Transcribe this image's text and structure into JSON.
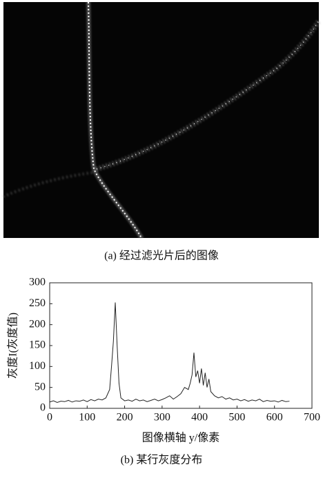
{
  "figure_a": {
    "caption": "(a) 经过滤光片后的图像"
  },
  "chart_data": {
    "type": "line",
    "xlabel": "图像横轴 y/像素",
    "ylabel": "灰度I(灰度值)",
    "caption": "(b) 某行灰度分布",
    "x": [
      0,
      10,
      20,
      30,
      40,
      50,
      60,
      70,
      80,
      90,
      100,
      110,
      120,
      130,
      140,
      150,
      160,
      165,
      170,
      175,
      180,
      185,
      190,
      200,
      210,
      220,
      230,
      240,
      250,
      260,
      270,
      280,
      290,
      300,
      310,
      320,
      330,
      340,
      350,
      360,
      370,
      375,
      380,
      385,
      390,
      395,
      400,
      405,
      410,
      415,
      420,
      425,
      430,
      440,
      450,
      460,
      470,
      480,
      490,
      500,
      510,
      520,
      530,
      540,
      550,
      560,
      570,
      580,
      590,
      600,
      610,
      620,
      630,
      640
    ],
    "series": [
      {
        "color": "#222222",
        "values": [
          15,
          18,
          14,
          17,
          16,
          19,
          15,
          18,
          17,
          20,
          16,
          21,
          18,
          22,
          20,
          25,
          45,
          100,
          160,
          253,
          150,
          60,
          25,
          18,
          20,
          17,
          22,
          18,
          20,
          16,
          19,
          22,
          18,
          21,
          25,
          30,
          22,
          28,
          35,
          50,
          45,
          60,
          80,
          133,
          75,
          90,
          60,
          95,
          55,
          85,
          50,
          70,
          40,
          30,
          25,
          28,
          22,
          25,
          20,
          22,
          18,
          21,
          17,
          20,
          18,
          22,
          16,
          19,
          17,
          18,
          15,
          19,
          16,
          17
        ]
      }
    ],
    "xlim": [
      0,
      700
    ],
    "xticks": [
      0,
      100,
      200,
      300,
      400,
      500,
      600,
      700
    ],
    "ylim": [
      0,
      300
    ],
    "yticks": [
      0,
      50,
      100,
      150,
      200,
      250,
      300
    ]
  }
}
